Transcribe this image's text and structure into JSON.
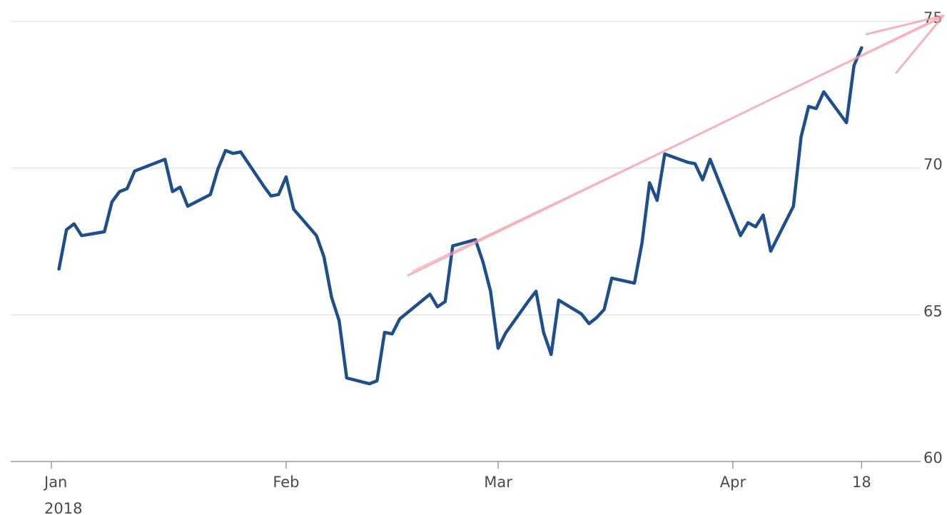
{
  "chart_data": {
    "type": "line",
    "x": [
      "2018-01-02",
      "2018-01-03",
      "2018-01-04",
      "2018-01-05",
      "2018-01-08",
      "2018-01-09",
      "2018-01-10",
      "2018-01-11",
      "2018-01-12",
      "2018-01-16",
      "2018-01-17",
      "2018-01-18",
      "2018-01-19",
      "2018-01-22",
      "2018-01-23",
      "2018-01-24",
      "2018-01-25",
      "2018-01-26",
      "2018-01-29",
      "2018-01-30",
      "2018-01-31",
      "2018-02-01",
      "2018-02-02",
      "2018-02-05",
      "2018-02-06",
      "2018-02-07",
      "2018-02-08",
      "2018-02-09",
      "2018-02-12",
      "2018-02-13",
      "2018-02-14",
      "2018-02-15",
      "2018-02-16",
      "2018-02-20",
      "2018-02-21",
      "2018-02-22",
      "2018-02-23",
      "2018-02-26",
      "2018-02-27",
      "2018-02-28",
      "2018-03-01",
      "2018-03-02",
      "2018-03-05",
      "2018-03-06",
      "2018-03-07",
      "2018-03-08",
      "2018-03-09",
      "2018-03-12",
      "2018-03-13",
      "2018-03-14",
      "2018-03-15",
      "2018-03-16",
      "2018-03-19",
      "2018-03-20",
      "2018-03-21",
      "2018-03-22",
      "2018-03-23",
      "2018-03-26",
      "2018-03-27",
      "2018-03-28",
      "2018-03-29",
      "2018-04-02",
      "2018-04-03",
      "2018-04-04",
      "2018-04-05",
      "2018-04-06",
      "2018-04-09",
      "2018-04-10",
      "2018-04-11",
      "2018-04-12",
      "2018-04-13",
      "2018-04-16",
      "2018-04-17",
      "2018-04-18"
    ],
    "series": [
      {
        "color": "#1f4f8a",
        "values": [
          66.56,
          67.9,
          68.1,
          67.7,
          67.83,
          68.85,
          69.2,
          69.3,
          69.9,
          70.3,
          69.2,
          69.35,
          68.7,
          69.1,
          69.97,
          70.6,
          70.5,
          70.55,
          69.4,
          69.05,
          69.1,
          69.7,
          68.6,
          67.7,
          66.97,
          65.6,
          64.8,
          62.85,
          62.65,
          62.75,
          64.4,
          64.35,
          64.86,
          65.7,
          65.27,
          65.45,
          67.35,
          67.56,
          66.8,
          65.8,
          63.86,
          64.38,
          65.47,
          65.8,
          64.4,
          63.65,
          65.5,
          65.03,
          64.7,
          64.9,
          65.18,
          66.25,
          66.08,
          67.45,
          69.5,
          68.9,
          70.48,
          70.2,
          70.15,
          69.6,
          70.3,
          67.7,
          68.14,
          68.0,
          68.4,
          67.17,
          68.7,
          71.06,
          72.1,
          72.03,
          72.6,
          71.55,
          73.5,
          74.1
        ]
      }
    ],
    "xlim": [
      "2018-01-01",
      "2018-04-24"
    ],
    "xticks": [
      {
        "value": "2018-01-01",
        "label": [
          "Jan",
          "2018"
        ]
      },
      {
        "value": "2018-02-01",
        "label": "Feb"
      },
      {
        "value": "2018-03-01",
        "label": "Mar"
      },
      {
        "value": "2018-04-01",
        "label": "Apr"
      },
      {
        "value": "2018-04-18",
        "label": "18"
      }
    ],
    "ylim": [
      60,
      75
    ],
    "yticks": [
      60,
      65,
      70,
      75
    ],
    "grid": true
  }
}
